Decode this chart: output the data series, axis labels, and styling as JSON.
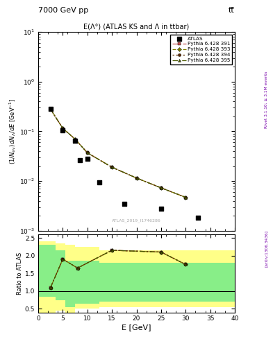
{
  "title_main": "7000 GeV pp",
  "title_right": "tt̅",
  "plot_title": "E(Λ°) (ATLAS KS and Λ in ttbar)",
  "watermark": "ATLAS_2019_I1746286",
  "right_label_top": "Rivet 3.1.10; ≥ 3.1M events",
  "right_label_bot": "[arXiv:1306.3436]",
  "xlabel": "E [GeV]",
  "ratio_ylabel": "Ratio to ATLAS",
  "xlim": [
    0,
    40
  ],
  "ylim_log": [
    0.001,
    10
  ],
  "ylim_ratio": [
    0.4,
    2.6
  ],
  "atlas_x": [
    2.5,
    5.0,
    7.5,
    8.5,
    10.0,
    12.5,
    17.5,
    25.0,
    32.5
  ],
  "atlas_y": [
    0.28,
    0.105,
    0.065,
    0.026,
    0.028,
    0.0095,
    0.0035,
    0.0028,
    0.00185
  ],
  "pythia_x": [
    2.5,
    5.0,
    7.5,
    10.0,
    15.0,
    20.0,
    25.0,
    30.0
  ],
  "py391_y": [
    0.28,
    0.115,
    0.07,
    0.037,
    0.019,
    0.0115,
    0.0073,
    0.0047
  ],
  "py393_y": [
    0.28,
    0.115,
    0.07,
    0.037,
    0.019,
    0.0115,
    0.0073,
    0.0047
  ],
  "py394_y": [
    0.28,
    0.115,
    0.07,
    0.037,
    0.019,
    0.0115,
    0.0073,
    0.0047
  ],
  "py395_y": [
    0.28,
    0.115,
    0.07,
    0.037,
    0.019,
    0.0115,
    0.0073,
    0.0047
  ],
  "color_py391": "#c05050",
  "color_py393": "#808000",
  "color_py394": "#5a2a00",
  "color_py395": "#4a5a00",
  "ratio_x": [
    2.5,
    5.0,
    8.0,
    15.0,
    25.0,
    30.0
  ],
  "ratio_py391": [
    1.1,
    1.9,
    1.65,
    2.15,
    2.1,
    1.75
  ],
  "ratio_py393": [
    1.1,
    1.9,
    1.65,
    2.15,
    2.1,
    1.75
  ],
  "ratio_py394": [
    1.1,
    1.9,
    1.65,
    2.15,
    2.1,
    1.75
  ],
  "ratio_py395": [
    1.1,
    1.9,
    1.65,
    2.15,
    2.1,
    1.75
  ],
  "band_x": [
    0.0,
    2.0,
    3.5,
    5.5,
    7.5,
    12.5,
    40.0
  ],
  "green_lo": [
    0.85,
    0.85,
    0.75,
    0.55,
    0.65,
    0.7
  ],
  "green_hi": [
    2.3,
    2.3,
    2.15,
    1.85,
    1.85,
    1.8
  ],
  "yellow_lo": [
    0.05,
    0.05,
    0.45,
    0.3,
    0.5,
    0.55
  ],
  "yellow_hi": [
    2.4,
    2.4,
    2.35,
    2.3,
    2.25,
    2.15
  ]
}
